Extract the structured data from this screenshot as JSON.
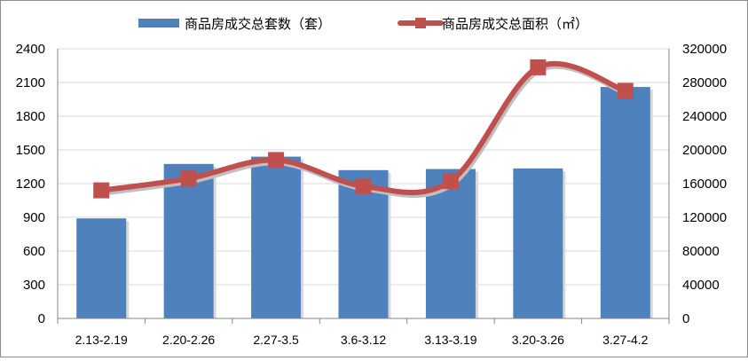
{
  "chart_data": {
    "type": "bar-line-combo",
    "categories": [
      "2.13-2.19",
      "2.20-2.26",
      "2.27-3.5",
      "3.6-3.12",
      "3.13-3.19",
      "3.20-3.26",
      "3.27-4.2"
    ],
    "series": [
      {
        "name": "商品房成交总套数（套）",
        "type": "bar",
        "axis": "left",
        "color": "#4f81bd",
        "values": [
          890,
          1375,
          1440,
          1320,
          1330,
          1335,
          2060
        ]
      },
      {
        "name": "商品房成交总面积（㎡）",
        "type": "line",
        "axis": "right",
        "color": "#c0504d",
        "smooth": true,
        "marker": "square",
        "values": [
          152000,
          166000,
          188000,
          157000,
          163000,
          298000,
          270000
        ]
      }
    ],
    "left_axis": {
      "ylim": [
        0,
        2400
      ],
      "ticks": [
        "0",
        "300",
        "600",
        "900",
        "1200",
        "1500",
        "1800",
        "2100",
        "2400"
      ]
    },
    "right_axis": {
      "ylim": [
        0,
        320000
      ],
      "ticks": [
        "0",
        "40000",
        "80000",
        "120000",
        "160000",
        "200000",
        "240000",
        "280000",
        "320000"
      ]
    },
    "grid": true,
    "legend": "top"
  }
}
